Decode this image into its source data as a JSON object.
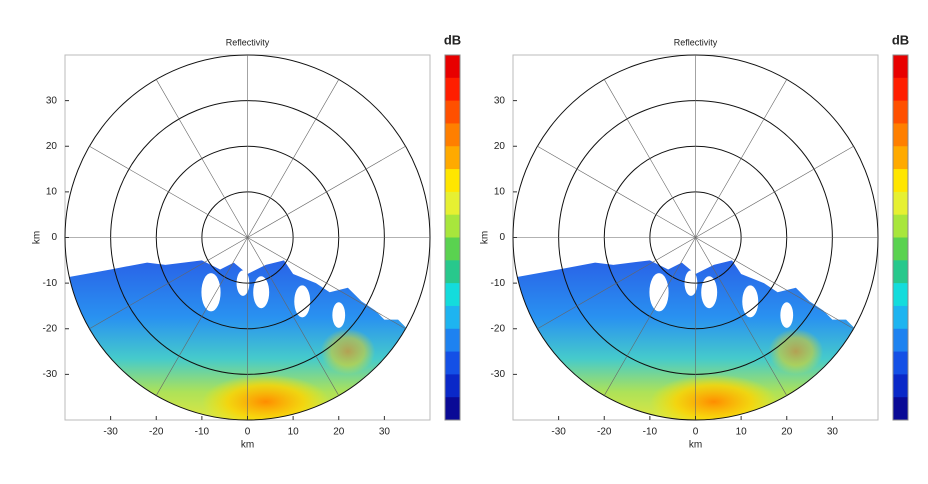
{
  "chart_data": [
    {
      "type": "radar-ppi",
      "title": "Reflectivity",
      "xlabel": "km",
      "ylabel": "km",
      "xlim": [
        -40,
        40
      ],
      "ylim": [
        -40,
        40
      ],
      "xticks": [
        -30,
        -20,
        -10,
        0,
        10,
        20,
        30
      ],
      "yticks": [
        -30,
        -20,
        -10,
        0,
        10,
        20,
        30
      ],
      "colorbar_label": "dB",
      "colorbar_colors": [
        "#e80000",
        "#ff1e00",
        "#ff5000",
        "#ff7f00",
        "#ffaa00",
        "#ffe600",
        "#e6f032",
        "#a8e63c",
        "#5ad250",
        "#28c88c",
        "#14dcdc",
        "#1eb4f0",
        "#1e82f0",
        "#1450e6",
        "#0a28c8",
        "#0a0a96"
      ]
    },
    {
      "type": "radar-ppi",
      "title": "Reflectivity",
      "xlabel": "km",
      "ylabel": "km",
      "xlim": [
        -40,
        40
      ],
      "ylim": [
        -40,
        40
      ],
      "xticks": [
        -30,
        -20,
        -10,
        0,
        10,
        20,
        30
      ],
      "yticks": [
        -30,
        -20,
        -10,
        0,
        10,
        20,
        30
      ],
      "colorbar_label": "dB",
      "colorbar_colors": [
        "#e80000",
        "#ff1e00",
        "#ff5000",
        "#ff7f00",
        "#ffaa00",
        "#ffe600",
        "#e6f032",
        "#a8e63c",
        "#5ad250",
        "#28c88c",
        "#14dcdc",
        "#1eb4f0",
        "#1e82f0",
        "#1450e6",
        "#0a28c8",
        "#0a0a96"
      ]
    }
  ]
}
